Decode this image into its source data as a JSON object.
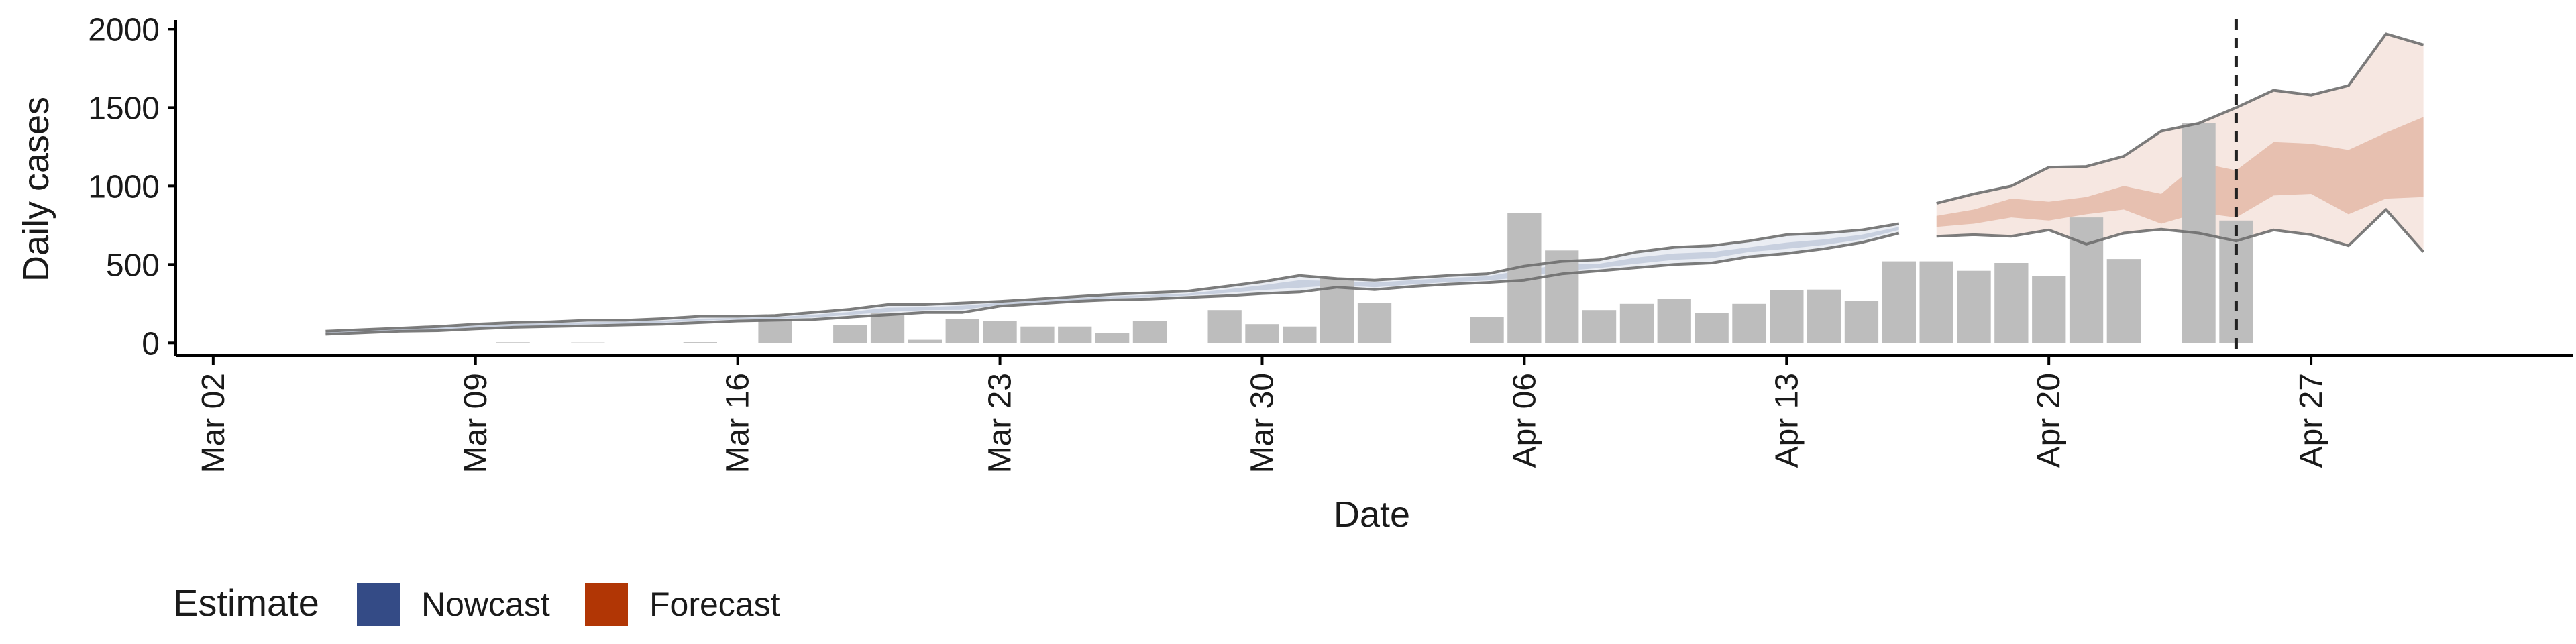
{
  "chart_data": {
    "type": "bar",
    "xlabel": "Date",
    "ylabel": "Daily cases",
    "ylim": [
      -80,
      2100
    ],
    "yticks": [
      0,
      500,
      1000,
      1500,
      2000
    ],
    "x_range": [
      "2020-03-01",
      "2020-05-04"
    ],
    "x_ticks": [
      {
        "date": "2020-03-02",
        "label": "Mar 02"
      },
      {
        "date": "2020-03-09",
        "label": "Mar 09"
      },
      {
        "date": "2020-03-16",
        "label": "Mar 16"
      },
      {
        "date": "2020-03-23",
        "label": "Mar 23"
      },
      {
        "date": "2020-03-30",
        "label": "Mar 30"
      },
      {
        "date": "2020-04-06",
        "label": "Apr 06"
      },
      {
        "date": "2020-04-13",
        "label": "Apr 13"
      },
      {
        "date": "2020-04-20",
        "label": "Apr 20"
      },
      {
        "date": "2020-04-27",
        "label": "Apr 27"
      }
    ],
    "reference_line": {
      "date": "2020-04-25",
      "style": "dashed"
    },
    "legend": {
      "title": "Estimate",
      "position": "bottom-left",
      "entries": [
        {
          "label": "Nowcast",
          "color": "#344b86"
        },
        {
          "label": "Forecast",
          "color": "#b13605"
        }
      ]
    },
    "colors": {
      "bars": "#bdbdbd",
      "bound_lines": "#6e6e6e",
      "nowcast": "#344b86",
      "forecast": "#b13605",
      "reference_line": "#222222"
    },
    "bars": [
      {
        "date": "2020-03-10",
        "value": 4
      },
      {
        "date": "2020-03-12",
        "value": 3
      },
      {
        "date": "2020-03-15",
        "value": 5
      },
      {
        "date": "2020-03-17",
        "value": 155
      },
      {
        "date": "2020-03-19",
        "value": 115
      },
      {
        "date": "2020-03-20",
        "value": 190
      },
      {
        "date": "2020-03-21",
        "value": 20
      },
      {
        "date": "2020-03-22",
        "value": 155
      },
      {
        "date": "2020-03-23",
        "value": 140
      },
      {
        "date": "2020-03-24",
        "value": 105
      },
      {
        "date": "2020-03-25",
        "value": 105
      },
      {
        "date": "2020-03-26",
        "value": 65
      },
      {
        "date": "2020-03-27",
        "value": 140
      },
      {
        "date": "2020-03-29",
        "value": 210
      },
      {
        "date": "2020-03-30",
        "value": 120
      },
      {
        "date": "2020-03-31",
        "value": 105
      },
      {
        "date": "2020-04-01",
        "value": 415
      },
      {
        "date": "2020-04-02",
        "value": 255
      },
      {
        "date": "2020-04-05",
        "value": 165
      },
      {
        "date": "2020-04-06",
        "value": 830
      },
      {
        "date": "2020-04-07",
        "value": 590
      },
      {
        "date": "2020-04-08",
        "value": 210
      },
      {
        "date": "2020-04-09",
        "value": 250
      },
      {
        "date": "2020-04-10",
        "value": 280
      },
      {
        "date": "2020-04-11",
        "value": 190
      },
      {
        "date": "2020-04-12",
        "value": 250
      },
      {
        "date": "2020-04-13",
        "value": 335
      },
      {
        "date": "2020-04-14",
        "value": 340
      },
      {
        "date": "2020-04-15",
        "value": 270
      },
      {
        "date": "2020-04-16",
        "value": 520
      },
      {
        "date": "2020-04-17",
        "value": 520
      },
      {
        "date": "2020-04-18",
        "value": 460
      },
      {
        "date": "2020-04-19",
        "value": 510
      },
      {
        "date": "2020-04-20",
        "value": 425
      },
      {
        "date": "2020-04-21",
        "value": 800
      },
      {
        "date": "2020-04-22",
        "value": 535
      },
      {
        "date": "2020-04-24",
        "value": 1400
      },
      {
        "date": "2020-04-25",
        "value": 780
      }
    ],
    "nowcast": {
      "dates": [
        "2020-03-05",
        "2020-03-06",
        "2020-03-07",
        "2020-03-08",
        "2020-03-09",
        "2020-03-10",
        "2020-03-11",
        "2020-03-12",
        "2020-03-13",
        "2020-03-14",
        "2020-03-15",
        "2020-03-16",
        "2020-03-17",
        "2020-03-18",
        "2020-03-19",
        "2020-03-20",
        "2020-03-21",
        "2020-03-22",
        "2020-03-23",
        "2020-03-24",
        "2020-03-25",
        "2020-03-26",
        "2020-03-27",
        "2020-03-28",
        "2020-03-29",
        "2020-03-30",
        "2020-03-31",
        "2020-04-01",
        "2020-04-02",
        "2020-04-03",
        "2020-04-04",
        "2020-04-05",
        "2020-04-06",
        "2020-04-07",
        "2020-04-08",
        "2020-04-09",
        "2020-04-10",
        "2020-04-11",
        "2020-04-12",
        "2020-04-13",
        "2020-04-14",
        "2020-04-15",
        "2020-04-16"
      ],
      "upper": [
        75,
        85,
        95,
        105,
        120,
        130,
        135,
        145,
        145,
        155,
        170,
        170,
        175,
        195,
        215,
        245,
        245,
        255,
        265,
        280,
        295,
        310,
        320,
        330,
        360,
        390,
        430,
        410,
        400,
        415,
        430,
        440,
        490,
        520,
        530,
        580,
        610,
        620,
        650,
        690,
        700,
        720,
        760
      ],
      "lower": [
        55,
        65,
        75,
        78,
        90,
        100,
        105,
        110,
        115,
        120,
        130,
        140,
        145,
        150,
        165,
        180,
        195,
        195,
        235,
        250,
        265,
        275,
        280,
        290,
        300,
        315,
        325,
        355,
        340,
        360,
        375,
        385,
        400,
        440,
        460,
        480,
        500,
        510,
        550,
        570,
        600,
        640,
        700
      ],
      "inner_upper": [
        70,
        80,
        90,
        100,
        110,
        120,
        125,
        133,
        135,
        142,
        155,
        160,
        165,
        180,
        198,
        225,
        228,
        238,
        256,
        270,
        285,
        297,
        306,
        315,
        340,
        368,
        400,
        395,
        385,
        400,
        415,
        425,
        465,
        500,
        505,
        545,
        570,
        580,
        610,
        640,
        660,
        690,
        740
      ],
      "inner_lower": [
        60,
        70,
        80,
        85,
        98,
        108,
        112,
        120,
        123,
        130,
        143,
        150,
        155,
        163,
        180,
        198,
        210,
        212,
        243,
        258,
        273,
        285,
        292,
        302,
        318,
        337,
        352,
        368,
        355,
        373,
        388,
        398,
        420,
        458,
        478,
        505,
        530,
        540,
        580,
        600,
        625,
        660,
        720
      ]
    },
    "forecast": {
      "dates": [
        "2020-04-17",
        "2020-04-18",
        "2020-04-19",
        "2020-04-20",
        "2020-04-21",
        "2020-04-22",
        "2020-04-23",
        "2020-04-24",
        "2020-04-25",
        "2020-04-26",
        "2020-04-27",
        "2020-04-28",
        "2020-04-29",
        "2020-04-30"
      ],
      "upper": [
        890,
        950,
        1000,
        1120,
        1125,
        1190,
        1350,
        1400,
        1500,
        1610,
        1580,
        1640,
        1970,
        1900
      ],
      "lower": [
        680,
        690,
        680,
        720,
        630,
        700,
        725,
        700,
        650,
        720,
        690,
        620,
        850,
        580
      ],
      "inner_upper": [
        810,
        850,
        920,
        900,
        930,
        1000,
        950,
        1150,
        1100,
        1280,
        1270,
        1230,
        1340,
        1440
      ],
      "inner_lower": [
        740,
        760,
        800,
        780,
        820,
        850,
        760,
        830,
        800,
        940,
        950,
        820,
        920,
        930
      ]
    }
  }
}
